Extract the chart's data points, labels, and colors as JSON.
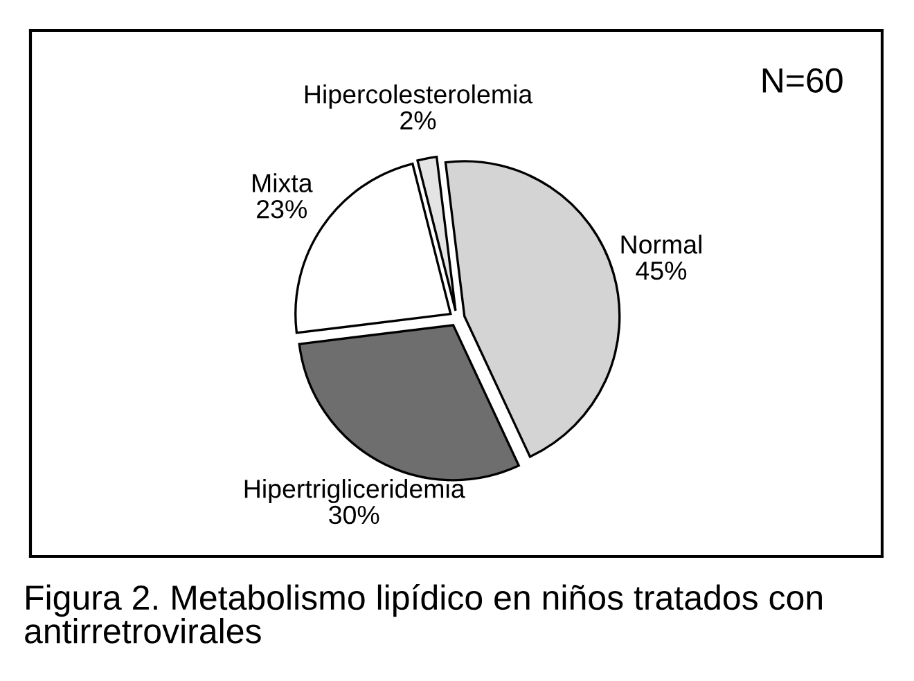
{
  "chart_data": {
    "type": "pie",
    "title": "Figura 2. Metabolismo lipídico en niños tratados con antirretrovirales",
    "annotations": [
      "N=60"
    ],
    "categories": [
      "Normal",
      "Hipertrigliceridemia",
      "Mixta",
      "Hipercolesterolemia"
    ],
    "values": [
      45,
      30,
      23,
      2
    ],
    "value_labels": [
      "45%",
      "30%",
      "23%",
      "2%"
    ],
    "colors": [
      "#d4d4d4",
      "#6e6e6e",
      "#ffffff",
      "#e4e4e4"
    ]
  }
}
